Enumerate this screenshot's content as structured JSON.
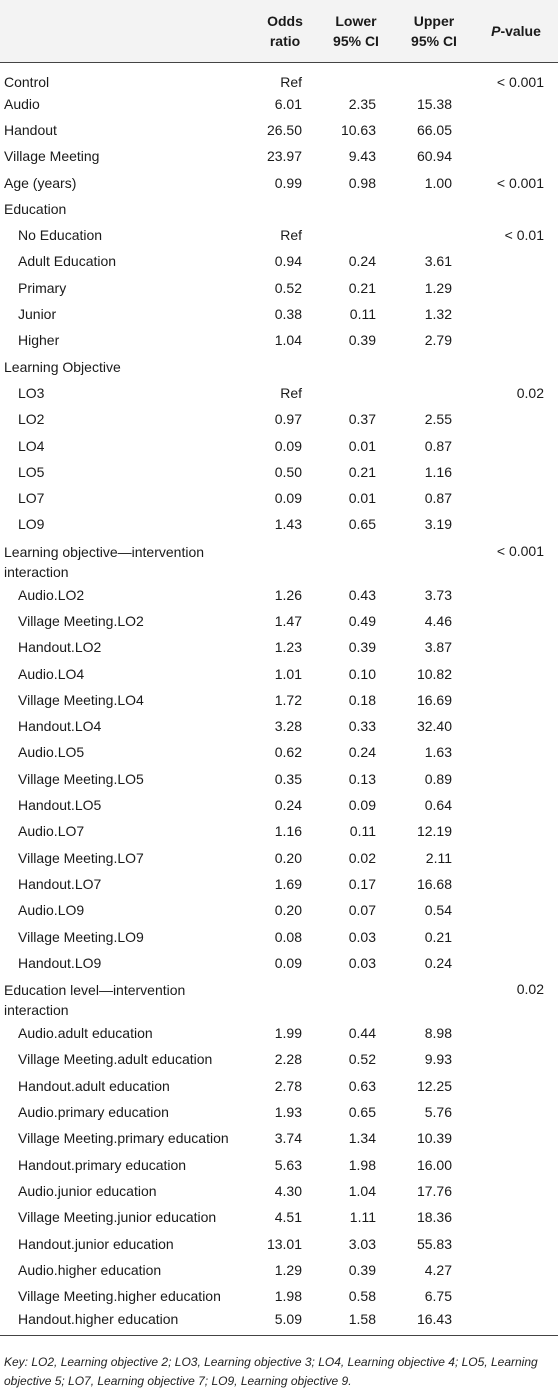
{
  "table": {
    "headers": {
      "odds": [
        "Odds",
        "ratio"
      ],
      "lower": [
        "Lower",
        "95% CI"
      ],
      "upper": [
        "Upper",
        "95% CI"
      ],
      "p_italic": "P",
      "p_rest": "-value"
    },
    "rows": [
      {
        "label": "Control",
        "indent": false,
        "or": "Ref",
        "lower": "",
        "upper": "",
        "p": "< 0.001"
      },
      {
        "label": "Audio",
        "indent": false,
        "or": "6.01",
        "lower": "2.35",
        "upper": "15.38",
        "p": ""
      },
      {
        "label": "Handout",
        "indent": false,
        "or": "26.50",
        "lower": "10.63",
        "upper": "66.05",
        "p": ""
      },
      {
        "label": "Village Meeting",
        "indent": false,
        "or": "23.97",
        "lower": "9.43",
        "upper": "60.94",
        "p": ""
      },
      {
        "label": "Age (years)",
        "indent": false,
        "or": "0.99",
        "lower": "0.98",
        "upper": "1.00",
        "p": "< 0.001"
      },
      {
        "label": "Education",
        "indent": false,
        "or": "",
        "lower": "",
        "upper": "",
        "p": ""
      },
      {
        "label": "No Education",
        "indent": true,
        "or": "Ref",
        "lower": "",
        "upper": "",
        "p": "< 0.01"
      },
      {
        "label": "Adult Education",
        "indent": true,
        "or": "0.94",
        "lower": "0.24",
        "upper": "3.61",
        "p": ""
      },
      {
        "label": "Primary",
        "indent": true,
        "or": "0.52",
        "lower": "0.21",
        "upper": "1.29",
        "p": ""
      },
      {
        "label": "Junior",
        "indent": true,
        "or": "0.38",
        "lower": "0.11",
        "upper": "1.32",
        "p": ""
      },
      {
        "label": "Higher",
        "indent": true,
        "or": "1.04",
        "lower": "0.39",
        "upper": "2.79",
        "p": ""
      },
      {
        "label": "Learning Objective",
        "indent": false,
        "or": "",
        "lower": "",
        "upper": "",
        "p": ""
      },
      {
        "label": "LO3",
        "indent": true,
        "or": "Ref",
        "lower": "",
        "upper": "",
        "p": "0.02"
      },
      {
        "label": "LO2",
        "indent": true,
        "or": "0.97",
        "lower": "0.37",
        "upper": "2.55",
        "p": ""
      },
      {
        "label": "LO4",
        "indent": true,
        "or": "0.09",
        "lower": "0.01",
        "upper": "0.87",
        "p": ""
      },
      {
        "label": "LO5",
        "indent": true,
        "or": "0.50",
        "lower": "0.21",
        "upper": "1.16",
        "p": ""
      },
      {
        "label": "LO7",
        "indent": true,
        "or": "0.09",
        "lower": "0.01",
        "upper": "0.87",
        "p": ""
      },
      {
        "label": "LO9",
        "indent": true,
        "or": "1.43",
        "lower": "0.65",
        "upper": "3.19",
        "p": ""
      },
      {
        "label": "Learning objective—intervention interaction",
        "indent": false,
        "wrap": true,
        "or": "",
        "lower": "",
        "upper": "",
        "p": "< 0.001"
      },
      {
        "label": "Audio.LO2",
        "indent": true,
        "or": "1.26",
        "lower": "0.43",
        "upper": "3.73",
        "p": ""
      },
      {
        "label": "Village Meeting.LO2",
        "indent": true,
        "or": "1.47",
        "lower": "0.49",
        "upper": "4.46",
        "p": ""
      },
      {
        "label": "Handout.LO2",
        "indent": true,
        "or": "1.23",
        "lower": "0.39",
        "upper": "3.87",
        "p": ""
      },
      {
        "label": "Audio.LO4",
        "indent": true,
        "or": "1.01",
        "lower": "0.10",
        "upper": "10.82",
        "p": ""
      },
      {
        "label": "Village Meeting.LO4",
        "indent": true,
        "or": "1.72",
        "lower": "0.18",
        "upper": "16.69",
        "p": ""
      },
      {
        "label": "Handout.LO4",
        "indent": true,
        "or": "3.28",
        "lower": "0.33",
        "upper": "32.40",
        "p": ""
      },
      {
        "label": "Audio.LO5",
        "indent": true,
        "or": "0.62",
        "lower": "0.24",
        "upper": "1.63",
        "p": ""
      },
      {
        "label": "Village Meeting.LO5",
        "indent": true,
        "or": "0.35",
        "lower": "0.13",
        "upper": "0.89",
        "p": ""
      },
      {
        "label": "Handout.LO5",
        "indent": true,
        "or": "0.24",
        "lower": "0.09",
        "upper": "0.64",
        "p": ""
      },
      {
        "label": "Audio.LO7",
        "indent": true,
        "or": "1.16",
        "lower": "0.11",
        "upper": "12.19",
        "p": ""
      },
      {
        "label": "Village Meeting.LO7",
        "indent": true,
        "or": "0.20",
        "lower": "0.02",
        "upper": "2.11",
        "p": ""
      },
      {
        "label": "Handout.LO7",
        "indent": true,
        "or": "1.69",
        "lower": "0.17",
        "upper": "16.68",
        "p": ""
      },
      {
        "label": "Audio.LO9",
        "indent": true,
        "or": "0.20",
        "lower": "0.07",
        "upper": "0.54",
        "p": ""
      },
      {
        "label": "Village Meeting.LO9",
        "indent": true,
        "or": "0.08",
        "lower": "0.03",
        "upper": "0.21",
        "p": ""
      },
      {
        "label": "Handout.LO9",
        "indent": true,
        "or": "0.09",
        "lower": "0.03",
        "upper": "0.24",
        "p": ""
      },
      {
        "label": "Education level—intervention interaction",
        "indent": false,
        "wrap": true,
        "or": "",
        "lower": "",
        "upper": "",
        "p": "0.02"
      },
      {
        "label": "Audio.adult education",
        "indent": true,
        "or": "1.99",
        "lower": "0.44",
        "upper": "8.98",
        "p": ""
      },
      {
        "label": "Village Meeting.adult education",
        "indent": true,
        "or": "2.28",
        "lower": "0.52",
        "upper": "9.93",
        "p": ""
      },
      {
        "label": "Handout.adult education",
        "indent": true,
        "or": "2.78",
        "lower": "0.63",
        "upper": "12.25",
        "p": ""
      },
      {
        "label": "Audio.primary education",
        "indent": true,
        "or": "1.93",
        "lower": "0.65",
        "upper": "5.76",
        "p": ""
      },
      {
        "label": "Village Meeting.primary education",
        "indent": true,
        "or": "3.74",
        "lower": "1.34",
        "upper": "10.39",
        "p": ""
      },
      {
        "label": "Handout.primary education",
        "indent": true,
        "or": "5.63",
        "lower": "1.98",
        "upper": "16.00",
        "p": ""
      },
      {
        "label": "Audio.junior education",
        "indent": true,
        "or": "4.30",
        "lower": "1.04",
        "upper": "17.76",
        "p": ""
      },
      {
        "label": "Village Meeting.junior education",
        "indent": true,
        "or": "4.51",
        "lower": "1.11",
        "upper": "18.36",
        "p": ""
      },
      {
        "label": "Handout.junior education",
        "indent": true,
        "or": "13.01",
        "lower": "3.03",
        "upper": "55.83",
        "p": ""
      },
      {
        "label": "Audio.higher education",
        "indent": true,
        "or": "1.29",
        "lower": "0.39",
        "upper": "4.27",
        "p": ""
      },
      {
        "label": "Village Meeting.higher education",
        "indent": true,
        "or": "1.98",
        "lower": "0.58",
        "upper": "6.75",
        "p": ""
      },
      {
        "label": "Handout.higher education",
        "indent": true,
        "or": "5.09",
        "lower": "1.58",
        "upper": "16.43",
        "p": ""
      }
    ]
  },
  "key_note": "Key: LO2, Learning objective 2; LO3, Learning objective 3; LO4, Learning objective 4; LO5, Learning objective 5; LO7, Learning objective 7; LO9, Learning objective 9."
}
